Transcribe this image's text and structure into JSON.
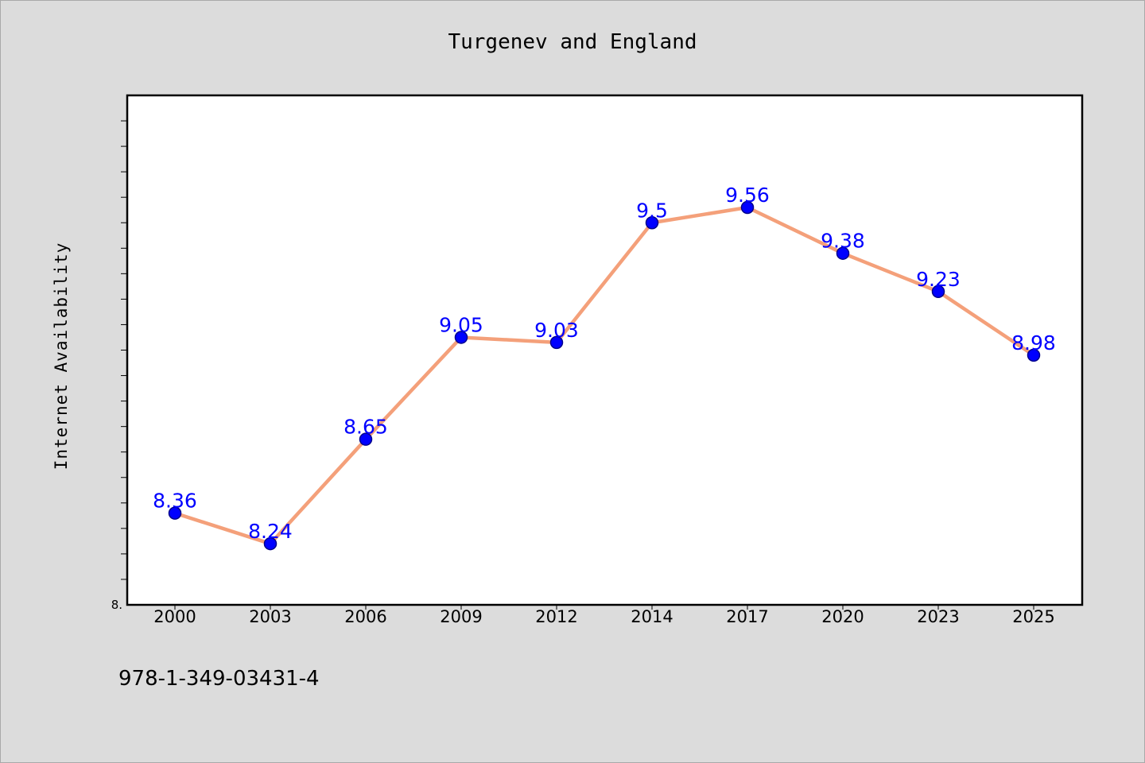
{
  "chart_data": {
    "type": "line",
    "title": "Turgenev and England",
    "xlabel": "",
    "ylabel": "Internet Availability",
    "categories": [
      "2000",
      "2003",
      "2006",
      "2009",
      "2012",
      "2014",
      "2017",
      "2020",
      "2023",
      "2025"
    ],
    "series": [
      {
        "values": [
          8.36,
          8.24,
          8.65,
          9.05,
          9.03,
          9.5,
          9.56,
          9.38,
          9.23,
          8.98
        ],
        "labels": [
          "8.36",
          "8.24",
          "8.65",
          "9.05",
          "9.03",
          "9.5",
          "9.56",
          "9.38",
          "9.23",
          "8.98"
        ]
      }
    ],
    "ylim": [
      8.0,
      10.0
    ],
    "y_tick_label": "8.",
    "grid": false,
    "legend": "none",
    "line_color": "#f4a07a",
    "marker_color": "#0000ff",
    "label_color": "#0000ff"
  },
  "footer": {
    "isbn": "978-1-349-03431-4"
  }
}
